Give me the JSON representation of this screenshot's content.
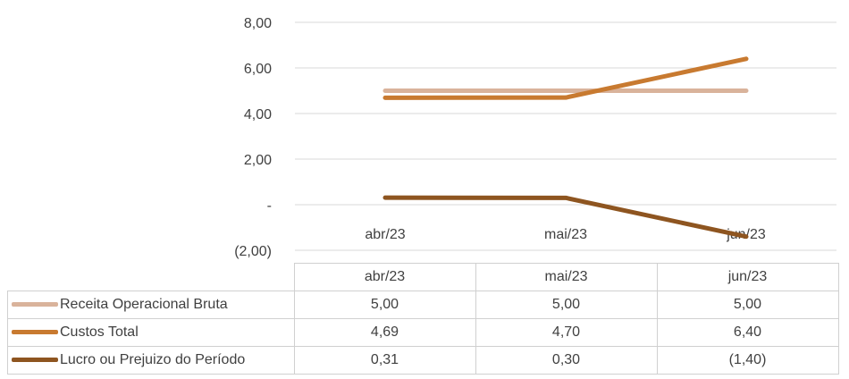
{
  "chart_data": {
    "type": "line",
    "categories": [
      "abr/23",
      "mai/23",
      "jun/23"
    ],
    "yticks": [
      "8,00",
      "6,00",
      "4,00",
      "2,00",
      "-",
      "(2,00)"
    ],
    "ylim": [
      -2,
      8
    ],
    "grid": true,
    "legend": "data-table",
    "series": [
      {
        "name": "Receita Operacional Bruta",
        "values": [
          5.0,
          5.0,
          5.0
        ],
        "labels": [
          "5,00",
          "5,00",
          "5,00"
        ],
        "color": "#D9B39B"
      },
      {
        "name": "Custos Total",
        "values": [
          4.69,
          4.7,
          6.4
        ],
        "labels": [
          "4,69",
          "4,70",
          "6,40"
        ],
        "color": "#C87A30"
      },
      {
        "name": "Lucro ou Prejuizo do Período",
        "values": [
          0.31,
          0.3,
          -1.4
        ],
        "labels": [
          "0,31",
          "0,30",
          "(1,40)"
        ],
        "color": "#8E5520"
      }
    ]
  }
}
